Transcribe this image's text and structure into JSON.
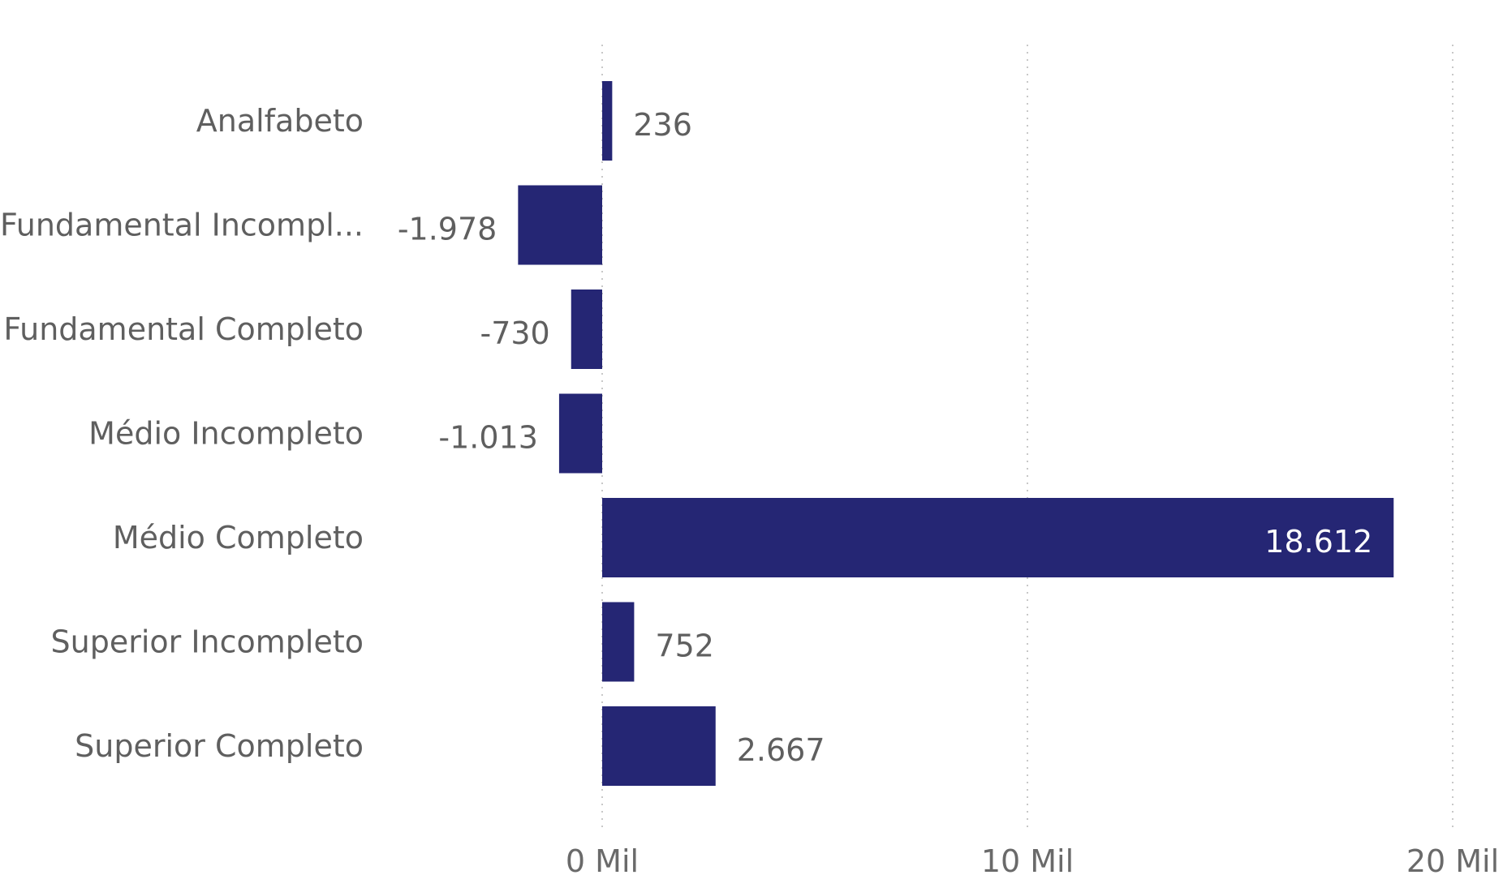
{
  "chart_data": {
    "type": "bar",
    "orientation": "horizontal",
    "title": "",
    "xlabel": "",
    "ylabel": "",
    "categories": [
      "Analfabeto",
      "Fundamental Incompl...",
      "Fundamental Completo",
      "Médio Incompleto",
      "Médio Completo",
      "Superior Incompleto",
      "Superior Completo"
    ],
    "values": [
      236,
      -1978,
      -730,
      -1013,
      18612,
      752,
      2667
    ],
    "data_labels": [
      "236",
      "-1.978",
      "-730",
      "-1.013",
      "18.612",
      "752",
      "2.667"
    ],
    "xlim": [
      -5000,
      20000
    ],
    "xticks": [
      0,
      10000,
      20000
    ],
    "xtick_labels": [
      "0 Mil",
      "10 Mil",
      "20 Mil"
    ],
    "grid": true,
    "legend": "none",
    "bar_color": "#252674"
  }
}
